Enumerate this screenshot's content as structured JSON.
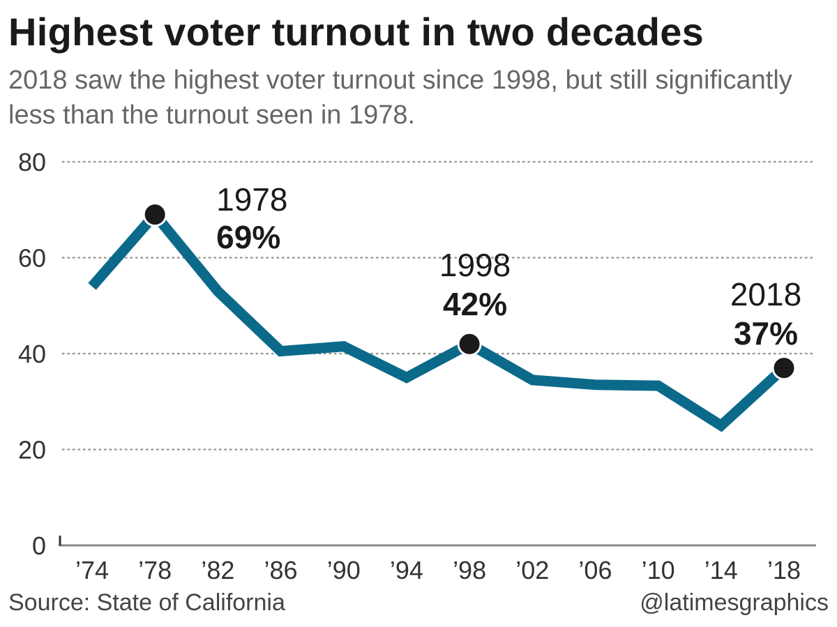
{
  "title": "Highest voter turnout in two decades",
  "subtitle": "2018 saw the highest voter turnout since 1998, but still significantly less than the turnout seen in 1978.",
  "source": "Source: State of California",
  "credit": "@latimesgraphics",
  "colors": {
    "line": "#0b6a8a",
    "marker": "#1a1a1a",
    "grid": "#9a9a9a",
    "axis": "#888888",
    "text": "#1a1a1a"
  },
  "chart_data": {
    "type": "line",
    "x": [
      1974,
      1978,
      1982,
      1986,
      1990,
      1994,
      1998,
      2002,
      2006,
      2010,
      2014,
      2018
    ],
    "x_tick_labels": [
      "’74",
      "’78",
      "’82",
      "’86",
      "’90",
      "’94",
      "’98",
      "’02",
      "’06",
      "’10",
      "’14",
      "’18"
    ],
    "series": [
      {
        "values": [
          54,
          69,
          53,
          40.5,
          41.5,
          35,
          42,
          34.5,
          33.5,
          33.3,
          25,
          37
        ]
      }
    ],
    "ylim": [
      0,
      80
    ],
    "y_ticks": [
      0,
      20,
      40,
      60,
      80
    ],
    "grid": "horizontal dotted",
    "annotations": [
      {
        "x": 1978,
        "year": "1978",
        "value": "69%"
      },
      {
        "x": 1998,
        "year": "1998",
        "value": "42%"
      },
      {
        "x": 2018,
        "year": "2018",
        "value": "37%"
      }
    ]
  }
}
